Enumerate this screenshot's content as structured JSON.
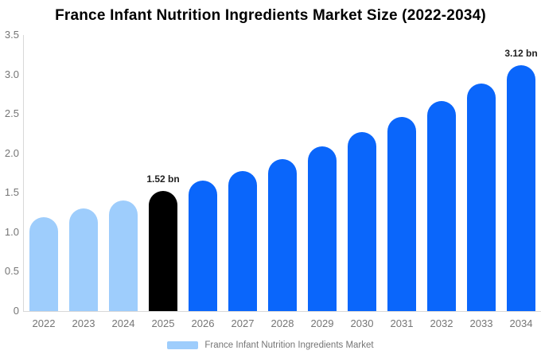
{
  "title": "France Infant Nutrition Ingredients Market Size (2022-2034)",
  "chart_data": {
    "type": "bar",
    "title": "France Infant Nutrition Ingredients Market Size (2022-2034)",
    "categories": [
      "2022",
      "2023",
      "2024",
      "2025",
      "2026",
      "2027",
      "2028",
      "2029",
      "2030",
      "2031",
      "2032",
      "2033",
      "2034"
    ],
    "values": [
      1.19,
      1.3,
      1.4,
      1.52,
      1.65,
      1.78,
      1.93,
      2.09,
      2.27,
      2.46,
      2.66,
      2.88,
      3.12
    ],
    "unit": "bn",
    "xlabel": "",
    "ylabel": "",
    "ylim": [
      0,
      3.5
    ],
    "yticks": [
      0,
      0.5,
      1.0,
      1.5,
      2.0,
      2.5,
      3.0,
      3.5
    ],
    "ytick_labels": [
      "0",
      "0.5",
      "1.0",
      "1.5",
      "2.0",
      "2.5",
      "3.0",
      "3.5"
    ],
    "grid": false,
    "legend_position": "bottom",
    "series_name": "France Infant Nutrition Ingredients Market",
    "bar_colors": [
      "#9ECDFC",
      "#9ECDFC",
      "#9ECDFC",
      "#000000",
      "#0A66FB",
      "#0A66FB",
      "#0A66FB",
      "#0A66FB",
      "#0A66FB",
      "#0A66FB",
      "#0A66FB",
      "#0A66FB",
      "#0A66FB"
    ],
    "annotations": [
      {
        "category": "2025",
        "value": 1.52,
        "text": "1.52 bn"
      },
      {
        "category": "2034",
        "value": 3.12,
        "text": "3.12 bn"
      }
    ]
  },
  "colors": {
    "light_blue": "#9ECDFC",
    "bright_blue": "#0A66FB",
    "highlight_black": "#000000",
    "axis_line": "#D8D8D8",
    "tick_label": "#757575",
    "data_label": "#1F1F1F"
  },
  "legend": {
    "label": "France Infant Nutrition Ingredients Market",
    "swatch_color": "#9ECDFC"
  }
}
